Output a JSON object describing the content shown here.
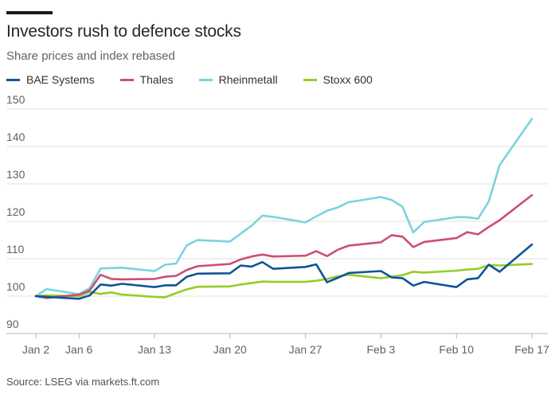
{
  "header": {
    "title": "Investors rush to defence stocks",
    "subtitle": "Share prices and index rebased"
  },
  "footer": {
    "source": "Source: LSEG via markets.ft.com"
  },
  "chart_data": {
    "type": "line",
    "title": "Investors rush to defence stocks",
    "subtitle": "Share prices and index rebased",
    "xlabel": "",
    "ylabel": "",
    "grid": true,
    "legend_position": "top",
    "ylim": [
      90,
      150
    ],
    "yticks": [
      90,
      100,
      110,
      120,
      130,
      140,
      150
    ],
    "xlim": [
      "Jan 2",
      "Feb 17"
    ],
    "xticks": [
      {
        "date": "Jan 2",
        "label": "Jan 2"
      },
      {
        "date": "Jan 6",
        "label": "Jan 6"
      },
      {
        "date": "Jan 13",
        "label": "Jan 13"
      },
      {
        "date": "Jan 20",
        "label": "Jan 20"
      },
      {
        "date": "Jan 27",
        "label": "Jan 27"
      },
      {
        "date": "Feb 3",
        "label": "Feb 3"
      },
      {
        "date": "Feb 10",
        "label": "Feb 10"
      },
      {
        "date": "Feb 17",
        "label": "Feb 17"
      }
    ],
    "x": [
      "Jan 2",
      "Jan 3",
      "Jan 6",
      "Jan 7",
      "Jan 8",
      "Jan 9",
      "Jan 10",
      "Jan 13",
      "Jan 14",
      "Jan 15",
      "Jan 16",
      "Jan 17",
      "Jan 20",
      "Jan 21",
      "Jan 22",
      "Jan 23",
      "Jan 24",
      "Jan 27",
      "Jan 28",
      "Jan 29",
      "Jan 30",
      "Jan 31",
      "Feb 3",
      "Feb 4",
      "Feb 5",
      "Feb 6",
      "Feb 7",
      "Feb 10",
      "Feb 11",
      "Feb 12",
      "Feb 13",
      "Feb 14",
      "Feb 17"
    ],
    "series": [
      {
        "name": "BAE Systems",
        "color": "#0f5499",
        "values": [
          100.0,
          99.8,
          99.3,
          100.2,
          103.1,
          102.8,
          103.3,
          102.4,
          102.9,
          102.9,
          105.2,
          106.0,
          106.1,
          108.2,
          107.9,
          109.1,
          107.3,
          107.8,
          108.5,
          103.7,
          104.9,
          106.2,
          106.7,
          105.0,
          104.8,
          102.8,
          103.8,
          102.4,
          104.5,
          104.8,
          108.4,
          106.5,
          113.8
        ]
      },
      {
        "name": "Thales",
        "color": "#cc4e76",
        "values": [
          100.0,
          99.5,
          100.4,
          101.5,
          105.7,
          104.6,
          104.5,
          104.6,
          105.2,
          105.4,
          107.0,
          108.0,
          108.6,
          109.8,
          110.6,
          111.1,
          110.6,
          110.8,
          112.0,
          110.7,
          112.4,
          113.5,
          114.4,
          116.3,
          115.9,
          113.1,
          114.5,
          115.5,
          117.1,
          116.5,
          118.5,
          120.3,
          127.0
        ]
      },
      {
        "name": "Rheinmetall",
        "color": "#7ad3e0",
        "values": [
          100.0,
          101.9,
          100.5,
          102.2,
          107.4,
          107.5,
          107.6,
          106.7,
          108.4,
          108.7,
          113.6,
          115.0,
          114.6,
          116.7,
          118.8,
          121.5,
          121.2,
          119.7,
          121.3,
          122.8,
          123.7,
          125.1,
          126.5,
          125.7,
          123.9,
          117.0,
          119.8,
          121.1,
          121.1,
          120.7,
          125.3,
          135.0,
          147.4
        ]
      },
      {
        "name": "Stoxx 600",
        "color": "#96cc28",
        "values": [
          100.0,
          100.2,
          100.0,
          101.1,
          100.6,
          101.0,
          100.4,
          99.8,
          99.7,
          100.8,
          101.8,
          102.5,
          102.6,
          103.1,
          103.5,
          103.9,
          103.8,
          103.8,
          104.1,
          104.6,
          105.3,
          105.7,
          104.8,
          105.2,
          105.6,
          106.5,
          106.3,
          106.8,
          107.1,
          107.3,
          108.3,
          108.2,
          108.6
        ]
      }
    ]
  }
}
